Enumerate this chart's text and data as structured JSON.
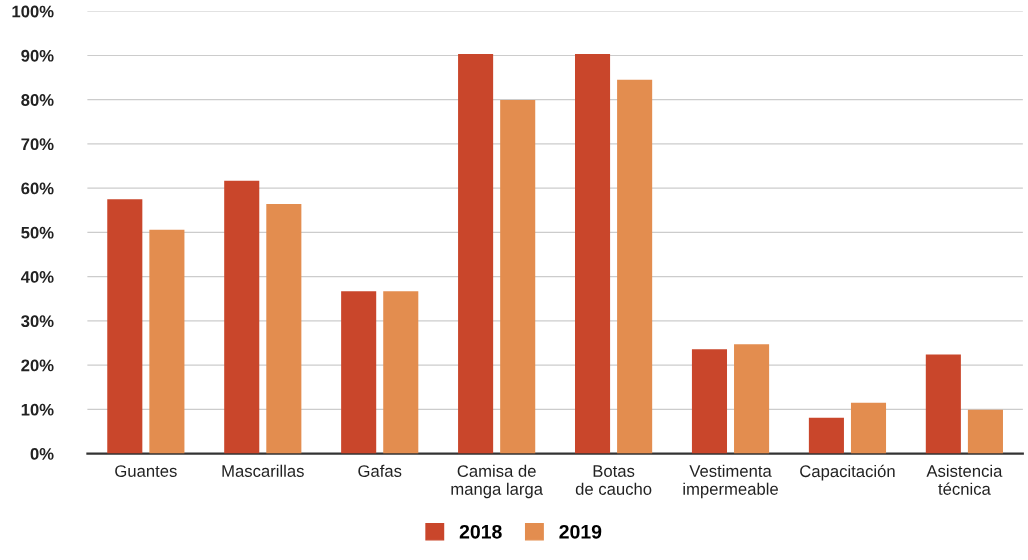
{
  "chart_data": {
    "type": "bar",
    "categories": [
      "Guantes",
      "Mascarillas",
      "Gafas",
      "Camisa de\nmanga larga",
      "Botas\nde caucho",
      "Vestimenta\nimpermeable",
      "Capacitación",
      "Asistencia\ntécnica"
    ],
    "series": [
      {
        "name": "2018",
        "color": "#c9462b",
        "values": [
          57.5,
          61.7,
          36.7,
          90.3,
          90.3,
          23.6,
          8.1,
          22.4
        ]
      },
      {
        "name": "2019",
        "color": "#e38d4f",
        "values": [
          50.6,
          56.4,
          36.7,
          79.9,
          84.5,
          24.7,
          11.5,
          9.9
        ]
      }
    ],
    "ylim": [
      0,
      100
    ],
    "yticks": [
      {
        "value": 0,
        "label": "0%"
      },
      {
        "value": 10,
        "label": "10%"
      },
      {
        "value": 20,
        "label": "20%"
      },
      {
        "value": 30,
        "label": "30%"
      },
      {
        "value": 40,
        "label": "40%"
      },
      {
        "value": 50,
        "label": "50%"
      },
      {
        "value": 60,
        "label": "60%"
      },
      {
        "value": 70,
        "label": "70%"
      },
      {
        "value": 80,
        "label": "80%"
      },
      {
        "value": 90,
        "label": "90%"
      },
      {
        "value": 100,
        "label": "100%"
      }
    ],
    "grid": "y",
    "legend": "bottom"
  }
}
